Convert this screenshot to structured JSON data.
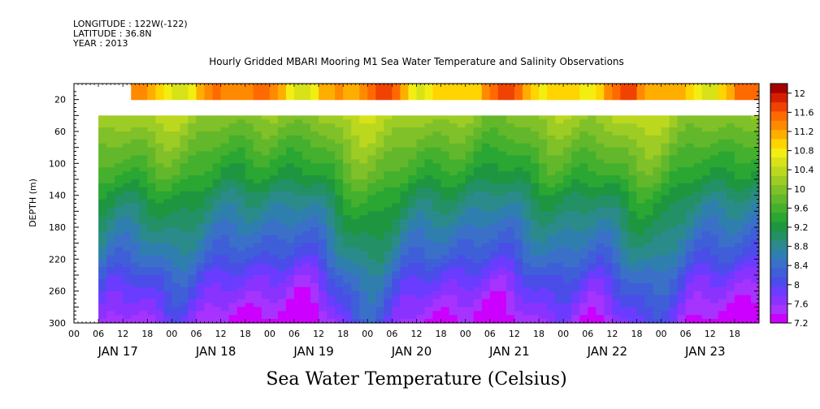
{
  "header": {
    "longitude": "LONGITUDE : 122W(-122)",
    "latitude": "LATITUDE : 36.8N",
    "year": "YEAR : 2013"
  },
  "footer_label": "Sea Water Temperature (Celsius)",
  "chart_data": {
    "type": "heatmap",
    "title": "Hourly Gridded MBARI Mooring M1 Sea Water Temperature and Salinity Observations",
    "ylabel": "DEPTH (m)",
    "xlabel": "",
    "x_range_hours": [
      0,
      168
    ],
    "y_range_m": [
      300,
      0
    ],
    "y_ticks": [
      20,
      60,
      100,
      140,
      180,
      220,
      260,
      300
    ],
    "x_hour_ticks": [
      "00",
      "06",
      "12",
      "18"
    ],
    "x_date_labels": [
      "JAN 17",
      "JAN 18",
      "JAN 19",
      "JAN 20",
      "JAN 21",
      "JAN 22",
      "JAN 23"
    ],
    "data_start_hour": 6,
    "surface_bin_start_hour": 14,
    "surface_bin_depth_m": [
      10,
      20
    ],
    "missing_band_depth_m": [
      20,
      40
    ],
    "colorbar": {
      "levels": [
        7.2,
        7.4,
        7.6,
        7.8,
        8.0,
        8.2,
        8.4,
        8.6,
        8.8,
        9.0,
        9.2,
        9.4,
        9.6,
        9.8,
        10.0,
        10.2,
        10.4,
        10.6,
        10.8,
        11.0,
        11.2,
        11.4,
        11.6,
        11.8,
        12.0,
        12.2
      ],
      "labels": [
        "12",
        "11.6",
        "11.2",
        "10.8",
        "10.4",
        "10",
        "9.6",
        "9.2",
        "8.8",
        "8.4",
        "8",
        "7.6",
        "7.2"
      ],
      "colors": [
        "#cc00ff",
        "#a733ff",
        "#8a33ff",
        "#6a3cff",
        "#4a4de8",
        "#3f5fd8",
        "#3a70c8",
        "#2f7fae",
        "#2b8a8a",
        "#239065",
        "#1e9640",
        "#2aa632",
        "#44b02e",
        "#62b82a",
        "#80c028",
        "#9dcc24",
        "#bcd81e",
        "#d8e218",
        "#f2ee12",
        "#ffd400",
        "#ffae00",
        "#ff8a00",
        "#ff6a00",
        "#f04200",
        "#d61e00",
        "#a60000"
      ]
    },
    "depth_profile": {
      "depths_m": [
        40,
        60,
        80,
        100,
        120,
        140,
        160,
        180,
        200,
        220,
        240,
        260,
        280,
        300
      ],
      "temperature_c": [
        10.3,
        10.1,
        9.9,
        9.7,
        9.5,
        9.2,
        9.0,
        8.8,
        8.6,
        8.4,
        8.1,
        7.9,
        7.7,
        7.5
      ]
    },
    "surface_temperature_c": 11.3
  }
}
